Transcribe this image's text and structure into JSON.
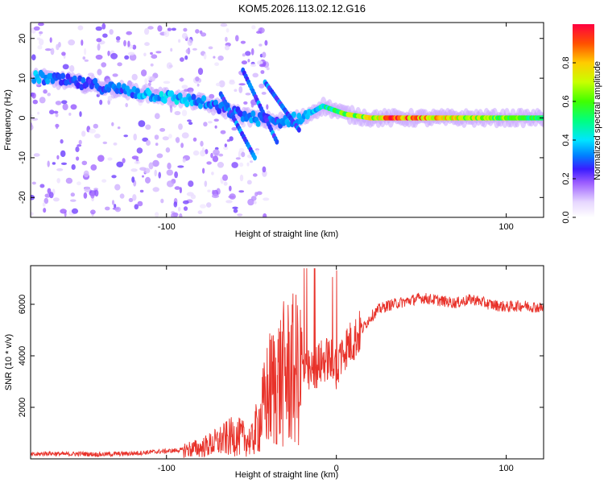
{
  "chart_data": [
    {
      "type": "heatmap",
      "title": "KOM5.2026.113.02.12.G16",
      "xlabel": "Height of straight line (km)",
      "ylabel": "Frequency (Hz)",
      "xlim": [
        -180,
        122
      ],
      "ylim": [
        -25,
        24
      ],
      "xticks": [
        -100,
        100
      ],
      "yticks": [
        -20,
        -10,
        0,
        10,
        20
      ],
      "colorbar": {
        "label": "Normalized spectral amplitude",
        "range": [
          0,
          1
        ],
        "ticks": [
          0.0,
          0.2,
          0.4,
          0.6,
          0.8
        ],
        "tick_labels": [
          "0.0",
          "0.2",
          "0.4",
          "0.6",
          "0.8"
        ]
      },
      "ridge": [
        {
          "x": -172,
          "y": 10,
          "v": 0.35
        },
        {
          "x": -155,
          "y": 9,
          "v": 0.3
        },
        {
          "x": -140,
          "y": 8,
          "v": 0.28
        },
        {
          "x": -125,
          "y": 7,
          "v": 0.32
        },
        {
          "x": -110,
          "y": 6,
          "v": 0.38
        },
        {
          "x": -95,
          "y": 5,
          "v": 0.4
        },
        {
          "x": -80,
          "y": 4,
          "v": 0.35
        },
        {
          "x": -65,
          "y": 2,
          "v": 0.3
        },
        {
          "x": -50,
          "y": 0,
          "v": 0.35
        },
        {
          "x": -35,
          "y": -1,
          "v": 0.3
        },
        {
          "x": -20,
          "y": 0,
          "v": 0.4
        },
        {
          "x": -8,
          "y": 3,
          "v": 0.45
        },
        {
          "x": 5,
          "y": 1,
          "v": 0.65
        },
        {
          "x": 20,
          "y": 0,
          "v": 0.75
        },
        {
          "x": 35,
          "y": 0,
          "v": 0.95
        },
        {
          "x": 60,
          "y": 0,
          "v": 0.8
        },
        {
          "x": 85,
          "y": 0,
          "v": 0.7
        },
        {
          "x": 110,
          "y": 0,
          "v": 0.6
        },
        {
          "x": 122,
          "y": 0,
          "v": 0.55
        }
      ]
    },
    {
      "type": "line",
      "xlabel": "Height of straight line (km)",
      "ylabel": "SNR (10 * v/v)",
      "xlim": [
        -180,
        122
      ],
      "ylim": [
        0,
        7500
      ],
      "xticks": [
        -100,
        0,
        100
      ],
      "yticks": [
        2000,
        4000,
        6000
      ],
      "series": [
        {
          "name": "SNR",
          "color": "#e8322a",
          "x": [
            -180,
            -170,
            -160,
            -150,
            -140,
            -130,
            -120,
            -110,
            -100,
            -90,
            -80,
            -70,
            -60,
            -50,
            -45,
            -40,
            -35,
            -30,
            -25,
            -20,
            -15,
            -10,
            -5,
            0,
            5,
            10,
            15,
            20,
            25,
            30,
            40,
            50,
            60,
            70,
            80,
            90,
            100,
            110,
            122
          ],
          "y": [
            150,
            220,
            180,
            200,
            170,
            190,
            210,
            260,
            300,
            350,
            420,
            650,
            900,
            700,
            1500,
            2600,
            3000,
            3300,
            3400,
            3500,
            3300,
            3700,
            3900,
            3600,
            4300,
            4600,
            5000,
            5500,
            5800,
            5950,
            6100,
            6250,
            6150,
            6050,
            6200,
            6000,
            5900,
            5950,
            5850
          ]
        }
      ]
    }
  ]
}
